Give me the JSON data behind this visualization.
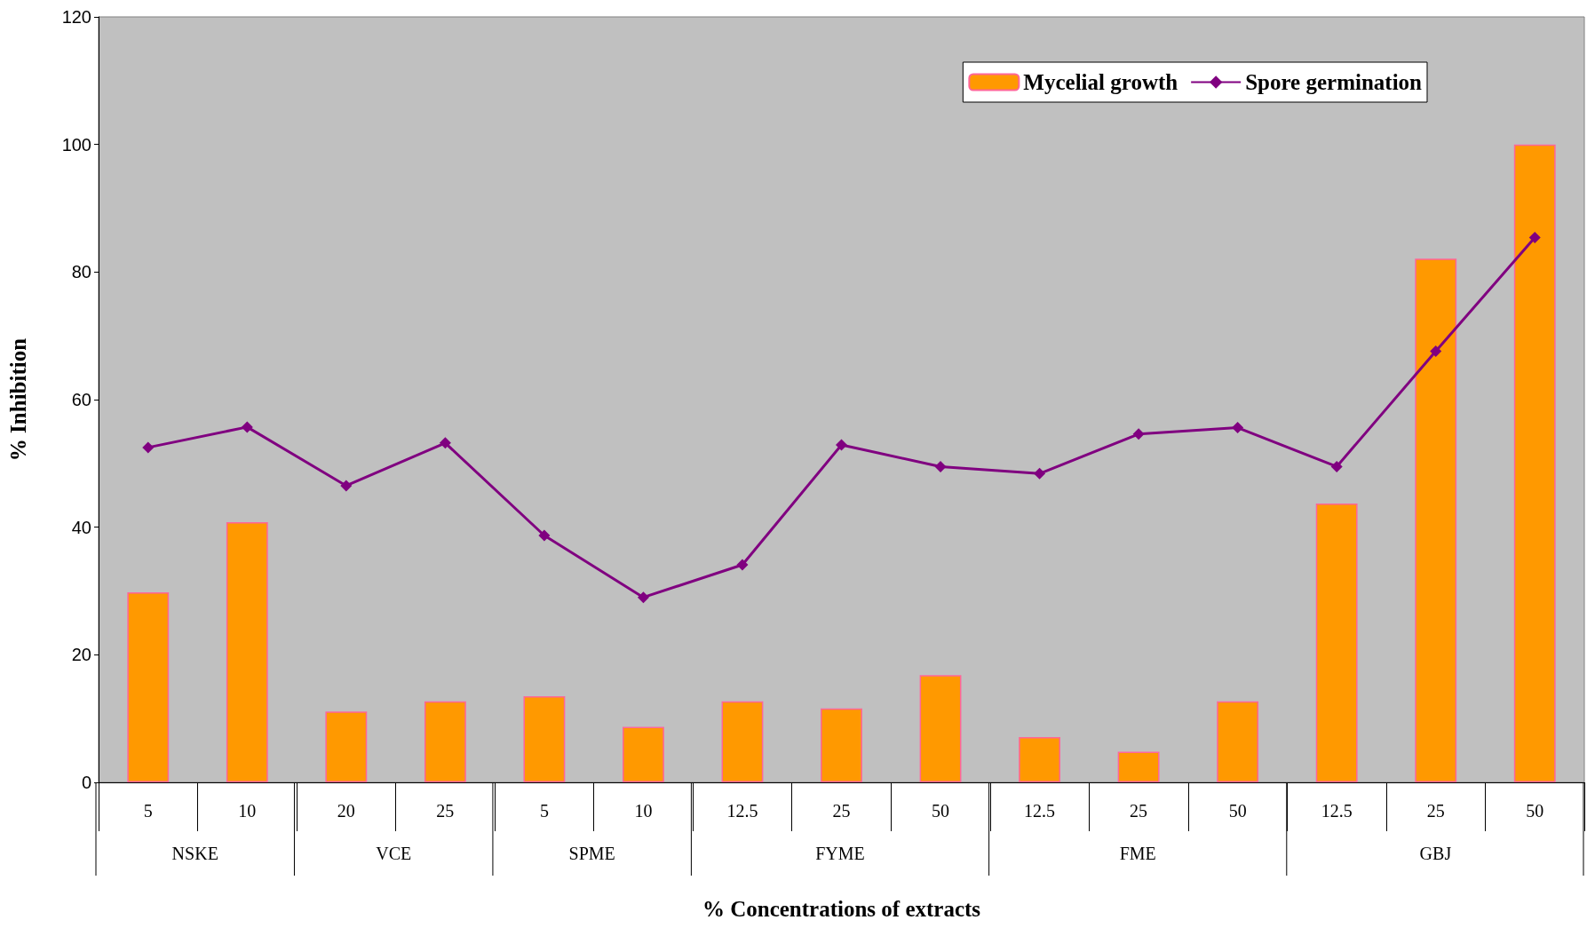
{
  "chart_data": {
    "type": "bar",
    "xlabel": "% Concentrations of extracts",
    "ylabel": "% Inhibition",
    "categories": [
      "5",
      "10",
      "20",
      "25",
      "5",
      "10",
      "12.5",
      "25",
      "50",
      "12.5",
      "25",
      "50",
      "12.5",
      "25",
      "50"
    ],
    "series": [
      {
        "name": "Mycelial growth",
        "color": "#ff9900",
        "values": [
          29.8,
          40.8,
          11.1,
          12.7,
          13.5,
          8.7,
          12.7,
          11.6,
          16.8,
          7.1,
          4.8,
          12.7,
          43.7,
          82.1,
          100
        ]
      },
      {
        "name": "Spore germination",
        "type": "line",
        "color": "#800080",
        "values": [
          52.5,
          55.7,
          46.5,
          53.2,
          38.7,
          29.0,
          34.1,
          52.9,
          49.5,
          48.4,
          54.6,
          55.6,
          49.5,
          67.6,
          85.4
        ]
      }
    ],
    "annotations": [
      "NSKE",
      "VCE",
      "SPME",
      "FYME",
      "FME",
      "GBJ"
    ],
    "ylim": [
      0,
      120
    ],
    "yticks": [
      0,
      20,
      40,
      60,
      80,
      100,
      120
    ],
    "grid": false,
    "legend": "top right",
    "marker": "diamond",
    "line_style": "solid"
  }
}
